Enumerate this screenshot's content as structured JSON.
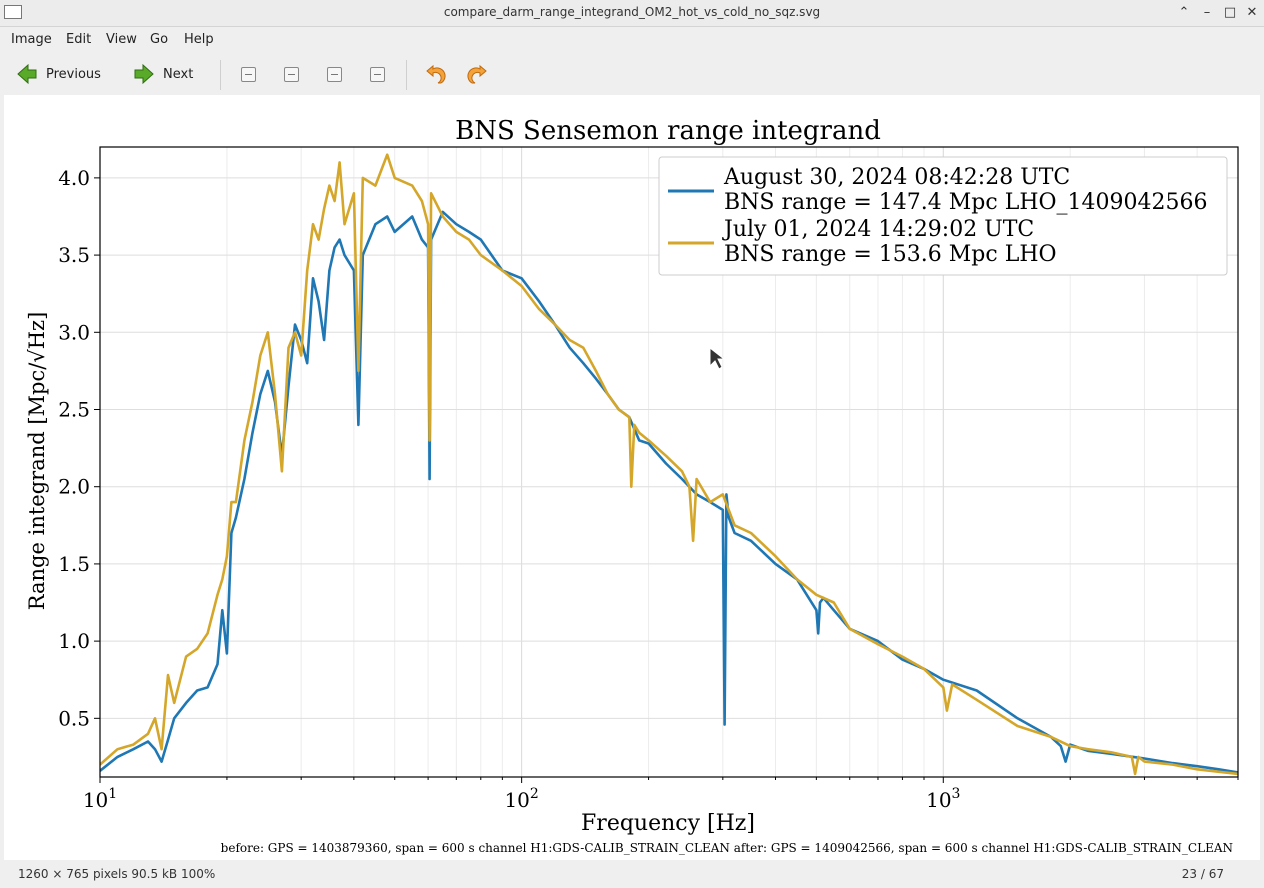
{
  "window": {
    "title": "compare_darm_range_integrand_OM2_hot_vs_cold_no_sqz.svg",
    "controls": [
      "minimize-caret",
      "minimize",
      "maximize",
      "close"
    ]
  },
  "menu": [
    "Image",
    "Edit",
    "View",
    "Go",
    "Help"
  ],
  "toolbar": {
    "previous_label": "Previous",
    "next_label": "Next",
    "icons": [
      "go-previous-icon",
      "go-next-icon",
      "zoom-in-icon",
      "zoom-out-icon",
      "zoom-100-icon",
      "zoom-fit-icon",
      "rotate-left-icon",
      "rotate-right-icon"
    ]
  },
  "status": {
    "image_info": "1260 × 765 pixels  90.5 kB   100%",
    "position": "23 / 67"
  },
  "chart_data": {
    "type": "line",
    "title": "BNS Sensemon range integrand",
    "xlabel": "Frequency [Hz]",
    "ylabel": "Range integrand [Mpc/√Hz]",
    "xscale": "log",
    "xlim": [
      10,
      5000
    ],
    "ylim": [
      0.12,
      4.2
    ],
    "xticks": [
      10,
      100,
      1000
    ],
    "yticks": [
      0.5,
      1.0,
      1.5,
      2.0,
      2.5,
      3.0,
      3.5,
      4.0
    ],
    "ytick_labels": [
      "0.5",
      "1.0",
      "1.5",
      "2.0",
      "2.5",
      "3.0",
      "3.5",
      "4.0"
    ],
    "grid": true,
    "legend_position": "top-right",
    "footnote": "before: GPS = 1403879360, span = 600 s channel H1:GDS-CALIB_STRAIN_CLEAN after: GPS = 1409042566, span = 600 s channel H1:GDS-CALIB_STRAIN_CLEAN",
    "series": [
      {
        "name": "August 30, 2024 08:42:28 UTC",
        "name2": "BNS range = 147.4 Mpc LHO_1409042566",
        "color": "#1f77b4",
        "x": [
          10,
          11,
          12,
          13,
          13.5,
          14,
          14.5,
          15,
          16,
          17,
          18,
          19,
          19.5,
          20,
          20.5,
          21,
          22,
          23,
          24,
          25,
          26,
          27,
          28,
          29,
          30,
          31,
          32,
          33,
          34,
          35,
          36,
          37,
          38,
          40,
          41,
          42,
          45,
          48,
          50,
          55,
          58,
          60,
          60.5,
          61,
          65,
          70,
          75,
          80,
          90,
          100,
          110,
          120,
          130,
          140,
          150,
          160,
          170,
          180,
          190,
          200,
          220,
          240,
          260,
          280,
          300,
          303,
          306,
          310,
          320,
          350,
          400,
          450,
          500,
          505,
          510,
          520,
          550,
          600,
          700,
          800,
          900,
          1000,
          1200,
          1500,
          1800,
          1900,
          1950,
          2000,
          2200,
          2500,
          3000,
          3500,
          4000,
          4500,
          5000
        ],
        "y": [
          0.16,
          0.25,
          0.3,
          0.35,
          0.3,
          0.22,
          0.36,
          0.5,
          0.6,
          0.68,
          0.7,
          0.85,
          1.2,
          0.92,
          1.7,
          1.8,
          2.05,
          2.35,
          2.6,
          2.75,
          2.55,
          2.2,
          2.65,
          3.05,
          2.95,
          2.8,
          3.35,
          3.2,
          2.95,
          3.4,
          3.55,
          3.6,
          3.5,
          3.4,
          2.4,
          3.5,
          3.7,
          3.75,
          3.65,
          3.75,
          3.6,
          3.55,
          2.05,
          3.6,
          3.78,
          3.7,
          3.65,
          3.6,
          3.4,
          3.35,
          3.2,
          3.05,
          2.9,
          2.8,
          2.7,
          2.6,
          2.5,
          2.45,
          2.3,
          2.28,
          2.15,
          2.05,
          1.95,
          1.9,
          1.85,
          0.46,
          1.95,
          1.8,
          1.7,
          1.65,
          1.5,
          1.4,
          1.2,
          1.05,
          1.25,
          1.28,
          1.2,
          1.08,
          1.0,
          0.88,
          0.82,
          0.75,
          0.68,
          0.5,
          0.38,
          0.32,
          0.22,
          0.33,
          0.29,
          0.27,
          0.24,
          0.21,
          0.19,
          0.17,
          0.15
        ]
      },
      {
        "name": "July 01, 2024 14:29:02 UTC",
        "name2": "BNS range = 153.6 Mpc LHO",
        "color": "#d4a62a",
        "x": [
          10,
          11,
          12,
          13,
          13.5,
          14,
          14.5,
          15,
          16,
          17,
          18,
          19,
          19.5,
          20,
          20.5,
          21,
          22,
          23,
          24,
          25,
          26,
          27,
          28,
          29,
          30,
          31,
          32,
          33,
          34,
          35,
          36,
          37,
          38,
          40,
          41,
          42,
          45,
          48,
          50,
          55,
          58,
          60,
          60.5,
          61,
          65,
          70,
          75,
          80,
          90,
          100,
          110,
          120,
          130,
          140,
          150,
          160,
          170,
          180,
          182,
          185,
          190,
          200,
          220,
          240,
          250,
          255,
          260,
          280,
          300,
          320,
          350,
          400,
          450,
          500,
          550,
          600,
          700,
          800,
          900,
          1000,
          1020,
          1050,
          1200,
          1500,
          1800,
          2000,
          2200,
          2500,
          2800,
          2850,
          2900,
          3000,
          3500,
          4000,
          5000
        ],
        "y": [
          0.2,
          0.3,
          0.33,
          0.4,
          0.5,
          0.3,
          0.78,
          0.6,
          0.9,
          0.95,
          1.05,
          1.3,
          1.4,
          1.55,
          1.9,
          1.9,
          2.3,
          2.55,
          2.85,
          3.0,
          2.6,
          2.1,
          2.9,
          3.0,
          2.85,
          3.4,
          3.7,
          3.6,
          3.8,
          3.95,
          3.85,
          4.1,
          3.7,
          3.9,
          2.75,
          4.0,
          3.95,
          4.15,
          4.0,
          3.95,
          3.85,
          3.7,
          2.3,
          3.9,
          3.75,
          3.65,
          3.6,
          3.5,
          3.4,
          3.3,
          3.15,
          3.05,
          2.95,
          2.9,
          2.75,
          2.6,
          2.5,
          2.45,
          2.0,
          2.4,
          2.35,
          2.3,
          2.2,
          2.1,
          2.0,
          1.65,
          2.05,
          1.9,
          1.95,
          1.75,
          1.7,
          1.55,
          1.4,
          1.3,
          1.25,
          1.08,
          0.98,
          0.9,
          0.82,
          0.7,
          0.55,
          0.72,
          0.62,
          0.45,
          0.38,
          0.32,
          0.3,
          0.28,
          0.25,
          0.14,
          0.25,
          0.22,
          0.2,
          0.17,
          0.14
        ]
      }
    ]
  }
}
